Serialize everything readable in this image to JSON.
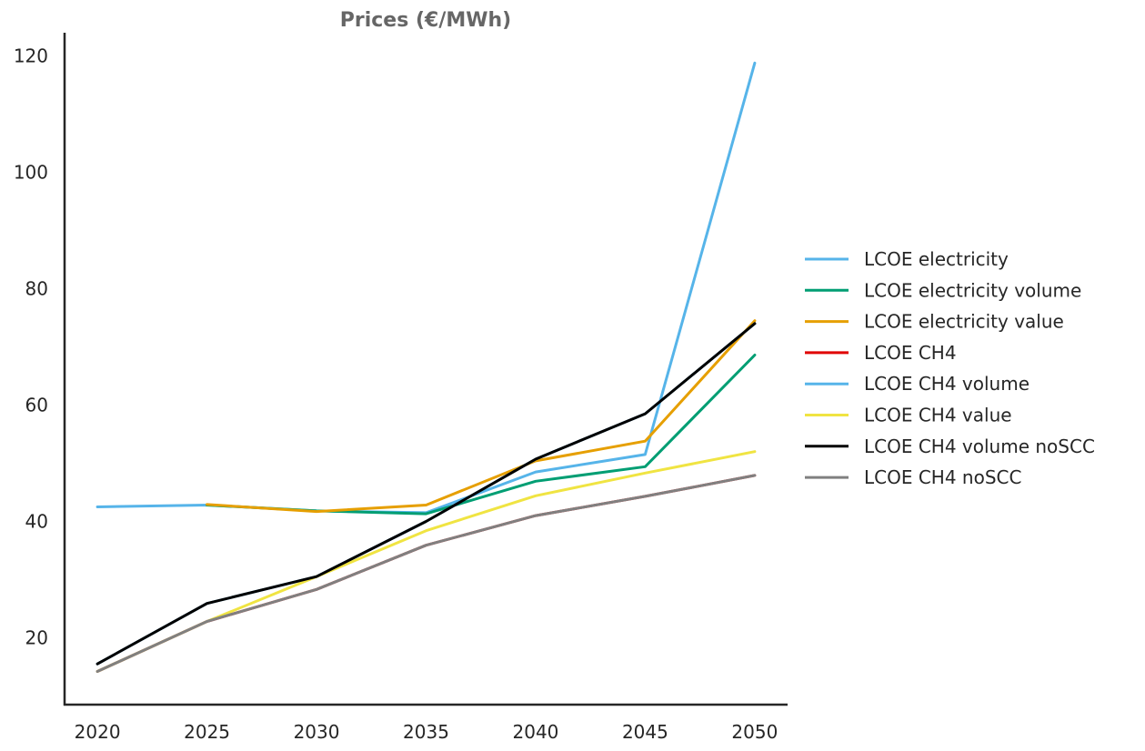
{
  "chart_data": {
    "type": "line",
    "title": "Prices (€/MWh)",
    "xlabel": "",
    "ylabel": "",
    "x": [
      "2020",
      "2025",
      "2030",
      "2035",
      "2040",
      "2045",
      "2050"
    ],
    "xlim": [
      2018.5,
      2051.5
    ],
    "ylim": [
      8.5,
      124
    ],
    "yticks": [
      20,
      40,
      60,
      80,
      100,
      120
    ],
    "grid": false,
    "legend_position": "center-right, outside plot",
    "series": [
      {
        "name": "LCOE electricity",
        "color": "#56b4e9",
        "values": [
          42.5,
          42.8,
          41.8,
          41.5,
          48.5,
          51.5,
          118.8
        ]
      },
      {
        "name": "LCOE electricity volume",
        "color": "#009e73",
        "values": [
          null,
          42.8,
          41.8,
          41.3,
          46.9,
          49.4,
          68.6
        ]
      },
      {
        "name": "LCOE electricity value",
        "color": "#e69f00",
        "values": [
          null,
          42.9,
          41.7,
          42.8,
          50.4,
          53.8,
          74.5
        ]
      },
      {
        "name": "LCOE CH4",
        "color": "#e00000",
        "values": [
          14.2,
          22.8,
          28.3,
          35.9,
          41.0,
          44.3,
          47.9
        ]
      },
      {
        "name": "LCOE CH4 volume",
        "color": "#56b4e9",
        "values": [
          15.5,
          25.9,
          30.5,
          40.0,
          50.7,
          58.5,
          74.0
        ]
      },
      {
        "name": "LCOE CH4 value",
        "color": "#f0e442",
        "values": [
          14.2,
          22.8,
          30.5,
          38.4,
          44.4,
          48.3,
          52.0
        ]
      },
      {
        "name": "LCOE CH4 volume noSCC",
        "color": "#000000",
        "values": [
          15.5,
          25.9,
          30.5,
          40.0,
          50.7,
          58.5,
          74.0
        ]
      },
      {
        "name": "LCOE CH4 noSCC",
        "color": "#808080",
        "values": [
          14.2,
          22.8,
          28.3,
          35.9,
          41.0,
          44.3,
          47.9
        ]
      }
    ]
  }
}
